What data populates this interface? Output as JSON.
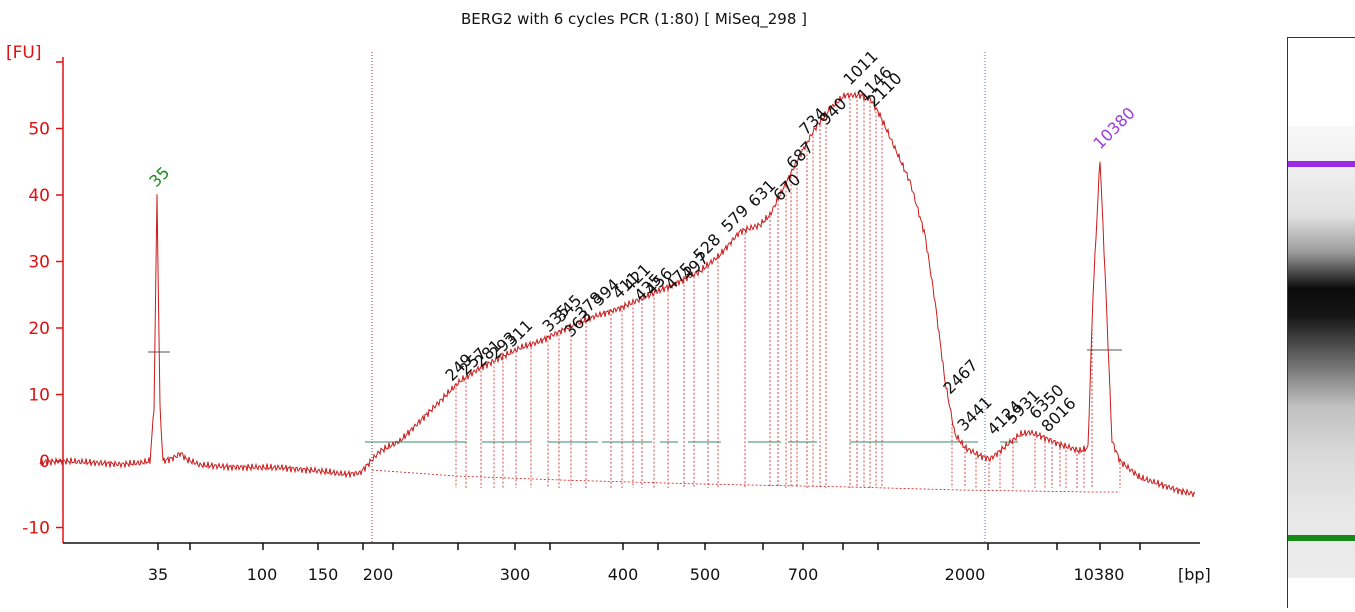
{
  "chart_data": {
    "type": "line",
    "title": "BERG2 with 6 cycles PCR (1:80)  [ MiSeq_298 ]",
    "xlabel": "[bp]",
    "ylabel": "[FU]",
    "ylim": [
      -12,
      57
    ],
    "yticks": [
      -10,
      0,
      10,
      20,
      30,
      40,
      50
    ],
    "xtick_labels": [
      "35",
      "100",
      "150",
      "200",
      "300",
      "400",
      "500",
      "700",
      "2000",
      "10380"
    ],
    "markers": [
      {
        "label": "35",
        "bp": 35,
        "height": 40,
        "color": "#1a8a1a"
      },
      {
        "label": "10380",
        "bp": 10380,
        "height": 45.5,
        "color": "#9a3ae0"
      }
    ],
    "peak_labels": [
      "249",
      "257",
      "281",
      "293",
      "311",
      "335",
      "345",
      "363",
      "378",
      "394",
      "411",
      "421",
      "435",
      "456",
      "475",
      "497",
      "528",
      "579",
      "631",
      "670",
      "687",
      "734",
      "940",
      "1011",
      "1146",
      "2110",
      "2467",
      "3441",
      "4124",
      "5931",
      "6350",
      "8016"
    ],
    "trace_color": "#cc1a1a"
  },
  "colors": {
    "trace": "#cc1a1a",
    "axis": "#e01010",
    "baseline": "#2a8a5a",
    "lower_marker": "#1a8a1a",
    "upper_marker": "#9a3ae0"
  }
}
